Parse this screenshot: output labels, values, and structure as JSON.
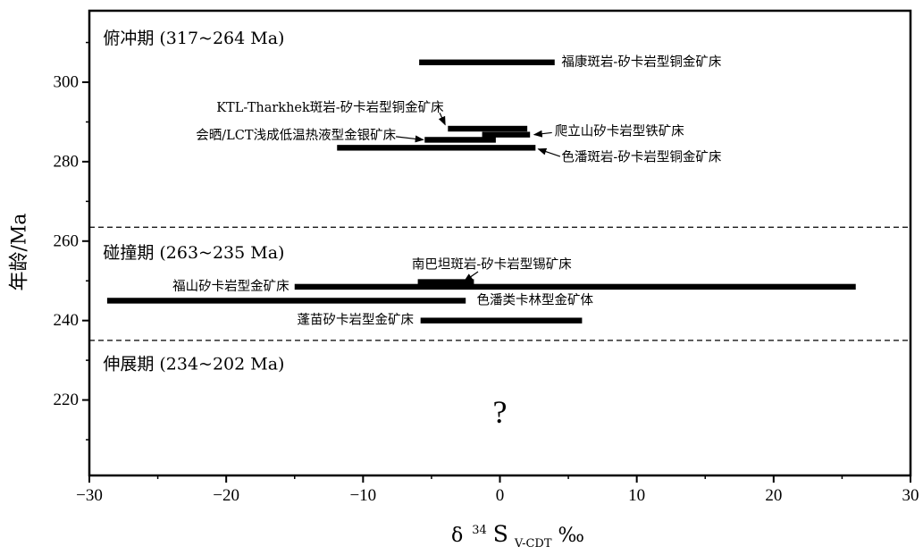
{
  "chart_data": {
    "type": "range",
    "xlabel": {
      "prefix": "δ",
      "sup": "34",
      "main": "S",
      "sub": "V-CDT",
      "unit": "‰"
    },
    "ylabel": "年龄/Ma",
    "xlim": [
      -30,
      30
    ],
    "ylim": [
      201,
      318
    ],
    "xticks": [
      -30,
      -20,
      -10,
      0,
      10,
      20,
      30
    ],
    "yticks": [
      220,
      240,
      260,
      280,
      300
    ],
    "grid": false,
    "period_boundaries": [
      263.5,
      235
    ],
    "periods": [
      {
        "label": "俯冲期 (317~264 Ma)",
        "x": -29,
        "y": 311
      },
      {
        "label": "碰撞期 (263~235 Ma)",
        "x": -29,
        "y": 257
      },
      {
        "label": "伸展期 (234~202 Ma)",
        "x": -29,
        "y": 229
      }
    ],
    "deposits": [
      {
        "name": "福康斑岩-矽卡岩型铜金矿床",
        "age": 305,
        "d34s": [
          -5.9,
          4.0
        ],
        "label_x": 4.5,
        "label_y": 305,
        "anchor": "start"
      },
      {
        "name": "KTL-Tharkhek斑岩-矽卡岩型铜金矿床",
        "age": 288.3,
        "d34s": [
          -3.8,
          2.0
        ],
        "label_x": -4.1,
        "label_y": 293.5,
        "anchor": "end",
        "arrow": {
          "from": [
            -4.4,
            292.3
          ],
          "to": [
            -4.0,
            289.3
          ]
        }
      },
      {
        "name": "爬立山矽卡岩型铁矿床",
        "age": 286.8,
        "d34s": [
          -1.3,
          2.2
        ],
        "label_x": 4.0,
        "label_y": 287.5,
        "anchor": "start",
        "arrow": {
          "from": [
            3.8,
            287.3
          ],
          "to": [
            2.5,
            286.8
          ]
        }
      },
      {
        "name": "会晒/LCT浅成低温热液型金银矿床",
        "age": 285.5,
        "d34s": [
          -5.5,
          -0.3
        ],
        "label_x": -7.6,
        "label_y": 286.5,
        "anchor": "end",
        "arrow": {
          "from": [
            -7.6,
            286.3
          ],
          "to": [
            -5.6,
            285.5
          ]
        }
      },
      {
        "name": "色潘斑岩-矽卡岩型铜金矿床",
        "age": 283.5,
        "d34s": [
          -11.9,
          2.6
        ],
        "label_x": 4.5,
        "label_y": 281,
        "anchor": "start",
        "arrow": {
          "from": [
            4.4,
            281.3
          ],
          "to": [
            2.8,
            283.2
          ]
        }
      },
      {
        "name": "南巴坦斑岩-矽卡岩型锡矿床",
        "age": 249.7,
        "d34s": [
          -6.0,
          -1.9
        ],
        "label_x": -0.6,
        "label_y": 254,
        "anchor": "middle",
        "arrow": {
          "from": [
            -1.6,
            252.3
          ],
          "to": [
            -2.6,
            249.9
          ]
        }
      },
      {
        "name": "福山矽卡岩型金矿床",
        "age": 248.5,
        "d34s": [
          -15.0,
          26.0
        ],
        "label_x": -15.4,
        "label_y": 248.5,
        "anchor": "end"
      },
      {
        "name": "色潘类卡林型金矿体",
        "age": 245,
        "d34s": [
          -28.7,
          -2.5
        ],
        "label_x": -1.7,
        "label_y": 245,
        "anchor": "start"
      },
      {
        "name": "蓬苗矽卡岩型金矿床",
        "age": 240,
        "d34s": [
          -5.8,
          6.0
        ],
        "label_x": -6.3,
        "label_y": 240,
        "anchor": "end"
      }
    ],
    "annotations": [
      {
        "text": "?",
        "x": 0,
        "y": 217
      }
    ]
  }
}
